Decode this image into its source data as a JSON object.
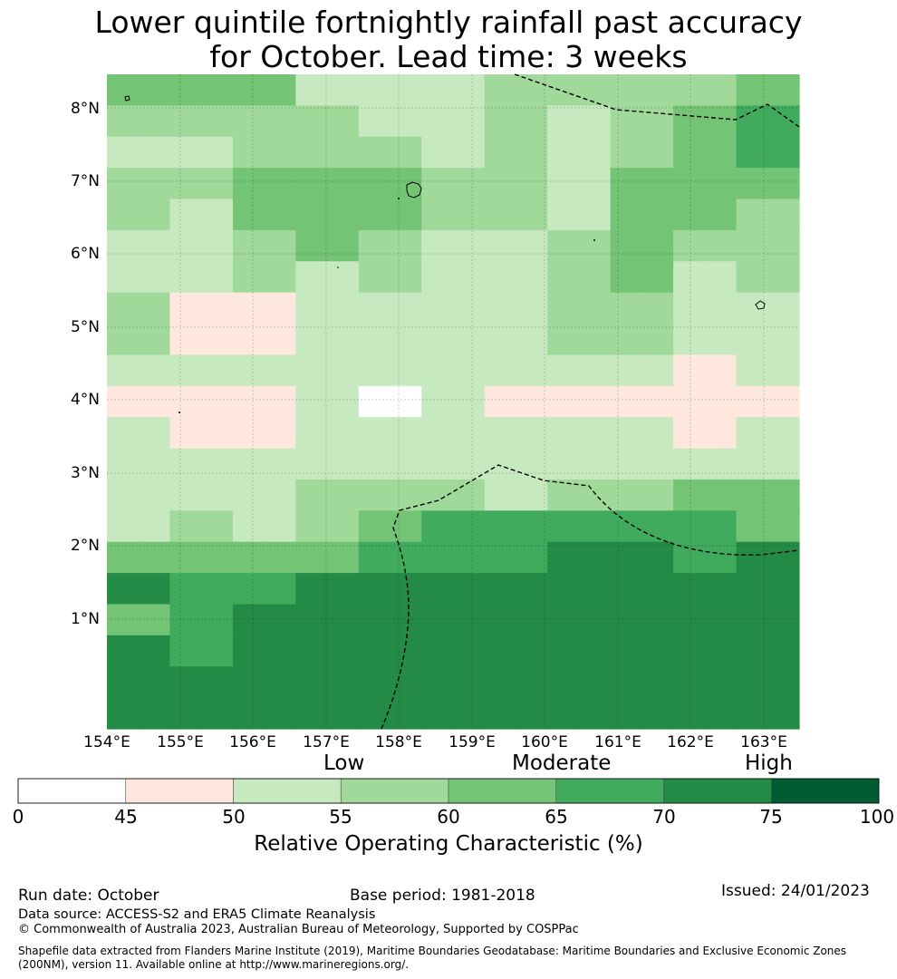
{
  "title": {
    "line1": "Lower quintile fortnightly rainfall past accuracy",
    "line2": "for October. Lead time: 3 weeks"
  },
  "map": {
    "lat_labels": [
      "8°N",
      "7°N",
      "6°N",
      "5°N",
      "4°N",
      "3°N",
      "2°N",
      "1°N"
    ],
    "lon_labels": [
      "154°E",
      "155°E",
      "156°E",
      "157°E",
      "158°E",
      "159°E",
      "160°E",
      "161°E",
      "162°E",
      "163°E"
    ],
    "category_labels": [
      "Low",
      "Moderate",
      "High"
    ],
    "grid_roc_bin": [
      [
        4,
        4,
        4,
        4,
        4,
        4,
        2,
        2,
        2,
        2,
        2,
        2,
        3,
        3,
        3,
        3,
        3,
        3,
        3,
        3,
        4,
        4
      ],
      [
        3,
        3,
        3,
        3,
        3,
        3,
        3,
        3,
        2,
        2,
        2,
        2,
        3,
        3,
        2,
        2,
        3,
        3,
        4,
        4,
        5,
        5
      ],
      [
        2,
        2,
        2,
        2,
        3,
        3,
        3,
        3,
        3,
        3,
        2,
        2,
        3,
        3,
        2,
        2,
        3,
        3,
        4,
        4,
        5,
        5
      ],
      [
        3,
        3,
        3,
        3,
        4,
        4,
        4,
        4,
        4,
        4,
        3,
        3,
        3,
        3,
        2,
        2,
        4,
        4,
        4,
        4,
        4,
        4
      ],
      [
        3,
        3,
        2,
        2,
        4,
        4,
        4,
        4,
        4,
        4,
        3,
        3,
        3,
        3,
        2,
        2,
        4,
        4,
        4,
        4,
        3,
        3
      ],
      [
        2,
        2,
        2,
        2,
        3,
        3,
        4,
        4,
        3,
        3,
        2,
        2,
        2,
        2,
        3,
        3,
        4,
        4,
        3,
        3,
        3,
        3
      ],
      [
        2,
        2,
        2,
        2,
        3,
        3,
        2,
        2,
        3,
        3,
        2,
        2,
        2,
        2,
        3,
        3,
        4,
        4,
        2,
        2,
        3,
        3
      ],
      [
        3,
        3,
        1,
        1,
        1,
        1,
        2,
        2,
        2,
        2,
        2,
        2,
        2,
        2,
        3,
        3,
        3,
        3,
        2,
        2,
        2,
        2
      ],
      [
        3,
        3,
        1,
        1,
        1,
        1,
        2,
        2,
        2,
        2,
        2,
        2,
        2,
        2,
        3,
        3,
        3,
        3,
        2,
        2,
        2,
        2
      ],
      [
        2,
        2,
        2,
        2,
        2,
        2,
        2,
        2,
        2,
        2,
        2,
        2,
        2,
        2,
        2,
        2,
        2,
        2,
        1,
        1,
        2,
        2
      ],
      [
        1,
        1,
        1,
        1,
        1,
        1,
        2,
        2,
        0,
        0,
        2,
        2,
        1,
        1,
        1,
        1,
        1,
        1,
        1,
        1,
        1,
        1
      ],
      [
        2,
        2,
        1,
        1,
        1,
        1,
        2,
        2,
        2,
        2,
        2,
        2,
        2,
        2,
        2,
        2,
        2,
        2,
        1,
        1,
        2,
        2
      ],
      [
        2,
        2,
        2,
        2,
        2,
        2,
        2,
        2,
        2,
        2,
        2,
        2,
        2,
        2,
        2,
        2,
        2,
        2,
        2,
        2,
        2,
        2
      ],
      [
        2,
        2,
        2,
        2,
        2,
        2,
        3,
        3,
        3,
        3,
        3,
        3,
        2,
        2,
        3,
        3,
        3,
        3,
        4,
        4,
        4,
        4
      ],
      [
        2,
        2,
        3,
        3,
        2,
        2,
        3,
        3,
        4,
        4,
        5,
        5,
        5,
        5,
        5,
        5,
        5,
        5,
        5,
        5,
        4,
        4
      ],
      [
        4,
        4,
        4,
        4,
        4,
        4,
        4,
        4,
        5,
        5,
        5,
        5,
        5,
        5,
        6,
        6,
        6,
        6,
        5,
        5,
        6,
        6
      ],
      [
        6,
        6,
        5,
        5,
        5,
        5,
        6,
        6,
        6,
        6,
        6,
        6,
        6,
        6,
        6,
        6,
        6,
        6,
        6,
        6,
        6,
        6
      ],
      [
        4,
        4,
        5,
        5,
        6,
        6,
        6,
        6,
        6,
        6,
        6,
        6,
        6,
        6,
        6,
        6,
        6,
        6,
        6,
        6,
        6,
        6
      ],
      [
        6,
        6,
        5,
        5,
        6,
        6,
        6,
        6,
        6,
        6,
        6,
        6,
        6,
        6,
        6,
        6,
        6,
        6,
        6,
        6,
        6,
        6
      ],
      [
        6,
        6,
        6,
        6,
        6,
        6,
        6,
        6,
        6,
        6,
        6,
        6,
        6,
        6,
        6,
        6,
        6,
        6,
        6,
        6,
        6,
        6
      ],
      [
        6,
        6,
        6,
        6,
        6,
        6,
        6,
        6,
        6,
        6,
        6,
        6,
        6,
        6,
        6,
        6,
        6,
        6,
        6,
        6,
        6,
        6
      ]
    ]
  },
  "colorbar": {
    "ticks": [
      "0",
      "45",
      "50",
      "55",
      "60",
      "65",
      "70",
      "75",
      "100"
    ],
    "title": "Relative Operating Characteristic (%)",
    "bin_colors": [
      "#ffffff",
      "#fee8de",
      "#c7e9c0",
      "#a1d99b",
      "#74c476",
      "#41ab5d",
      "#238b45",
      "#005a32"
    ]
  },
  "footer": {
    "run_date": "Run date: October",
    "base_period": "Base period: 1981-2018",
    "issued": "Issued: 24/01/2023",
    "data_source": "Data source: ACCESS-S2 and ERA5 Climate Reanalysis",
    "copyright": "© Commonwealth of Australia 2023, Australian Bureau of Meteorology, Supported by COSPPac",
    "shapefile": "Shapefile data extracted from Flanders Marine Institute (2019), Maritime Boundaries Geodatabase: Maritime Boundaries and Exclusive Economic Zones (200NM), version 11. Available online at http://www.marineregions.org/."
  }
}
